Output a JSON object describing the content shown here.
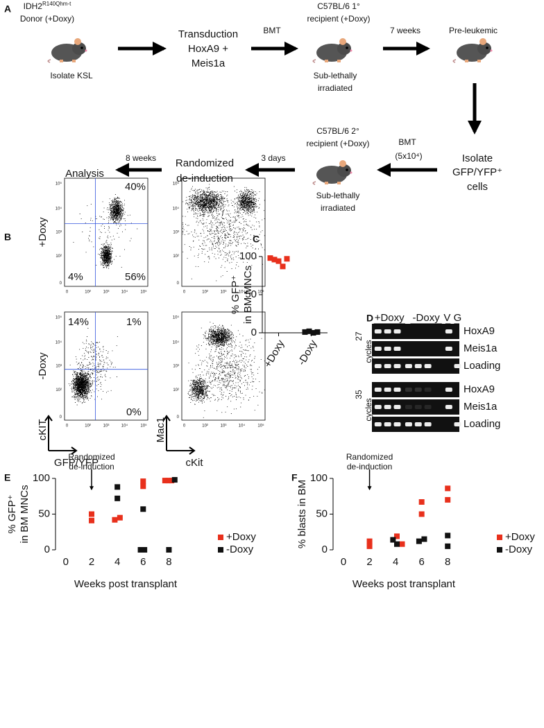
{
  "panel_labels": [
    "A",
    "B",
    "C",
    "D",
    "E",
    "F"
  ],
  "panel_a": {
    "donor": [
      "IDH2",
      "R140Qhm-t",
      "Donor (+Doxy)"
    ],
    "isolate_ksl": "Isolate KSL",
    "transduction": [
      "Transduction",
      "HoxA9 +",
      "Meis1a"
    ],
    "bmt1": "BMT",
    "recipient1": [
      "C57BL/6 1°",
      "recipient (+Doxy)"
    ],
    "irradiated1": [
      "Sub-lethally",
      "irradiated"
    ],
    "weeks7": "7 weeks",
    "preleukemic": "Pre-leukemic",
    "isolate_gfp": [
      "Isolate",
      "GFP/YFP⁺",
      "cells"
    ],
    "bmt2": [
      "BMT",
      "(5x10⁴)"
    ],
    "recipient2": [
      "C57BL/6 2°",
      "recipient (+Doxy)"
    ],
    "irradiated2": [
      "Sub-lethally",
      "irradiated"
    ],
    "days3": "3 days",
    "randomized": [
      "Randomized",
      "de-induction"
    ],
    "weeks8": "8 weeks",
    "analysis": "Analysis"
  },
  "panel_b": {
    "rows": [
      "+Doxy",
      "-Doxy"
    ],
    "axis_ticks": [
      "0",
      "10²",
      "10³",
      "10⁴",
      "10⁵"
    ],
    "top_left_pct": [
      "40%",
      "4%",
      "56%"
    ],
    "bottom_left_pct": [
      "14%",
      "1%",
      "0%"
    ],
    "left_axes": [
      "cKIT",
      "GFP/YFP"
    ],
    "right_axes": [
      "Mac1",
      "cKit"
    ]
  },
  "panel_d": {
    "groups": [
      "+Doxy",
      "-Doxy",
      "V",
      "G"
    ],
    "cycles": [
      "27",
      "cycles",
      "35",
      "cycles"
    ],
    "rows": [
      "HoxA9",
      "Meis1a",
      "Loading",
      "HoxA9",
      "Meis1a",
      "Loading"
    ]
  },
  "chart_data": [
    {
      "type": "dot",
      "ylabel": [
        "% GFP⁺",
        "in BM MNCs"
      ],
      "categories": [
        "+Doxy",
        "-Doxy"
      ],
      "values": [
        [
          98,
          96,
          94,
          87,
          97
        ],
        [
          1,
          2,
          0,
          1
        ]
      ],
      "colors": [
        "#e8301c",
        "#111111"
      ],
      "ylim": [
        0,
        100
      ],
      "yticks": [
        0,
        50,
        100
      ]
    },
    {
      "type": "scatter",
      "ylabel": [
        "% GFP⁺",
        "in BM MNCs"
      ],
      "xlabel": "Weeks post transplant",
      "annotation": [
        "Randomized",
        "de-induction"
      ],
      "annotation_x": 2,
      "series": [
        {
          "name": "+Doxy",
          "color": "#e8301c",
          "x": [
            2,
            2,
            3.8,
            4.2,
            6,
            6,
            7.7,
            7.95,
            8.2
          ],
          "values": [
            50,
            41,
            42,
            45,
            96,
            89,
            97,
            97,
            97
          ]
        },
        {
          "name": "-Doxy",
          "color": "#111111",
          "x": [
            4,
            4,
            6,
            5.8,
            6.1,
            8,
            8.45
          ],
          "values": [
            88,
            72,
            57,
            0,
            0,
            0,
            98
          ]
        }
      ],
      "xlim": [
        -0.8,
        9
      ],
      "xticks": [
        0,
        2,
        4,
        6,
        8
      ],
      "ylim": [
        0,
        100
      ],
      "yticks": [
        0,
        50,
        100
      ]
    },
    {
      "type": "scatter",
      "ylabel": [
        "% blasts in BM"
      ],
      "xlabel": "Weeks post transplant",
      "annotation": [
        "Randomized",
        "de-induction"
      ],
      "annotation_x": 2,
      "series": [
        {
          "name": "+Doxy",
          "color": "#e8301c",
          "x": [
            2,
            2,
            4.1,
            4.5,
            6,
            6,
            8,
            8
          ],
          "values": [
            12,
            5,
            19,
            8,
            67,
            50,
            86,
            70
          ]
        },
        {
          "name": "-Doxy",
          "color": "#111111",
          "x": [
            3.8,
            4.1,
            5.8,
            6.2,
            8,
            8
          ],
          "values": [
            14,
            8,
            12,
            15,
            20,
            5
          ]
        }
      ],
      "xlim": [
        -0.8,
        9
      ],
      "xticks": [
        0,
        2,
        4,
        6,
        8
      ],
      "ylim": [
        0,
        100
      ],
      "yticks": [
        0,
        50,
        100
      ]
    }
  ]
}
